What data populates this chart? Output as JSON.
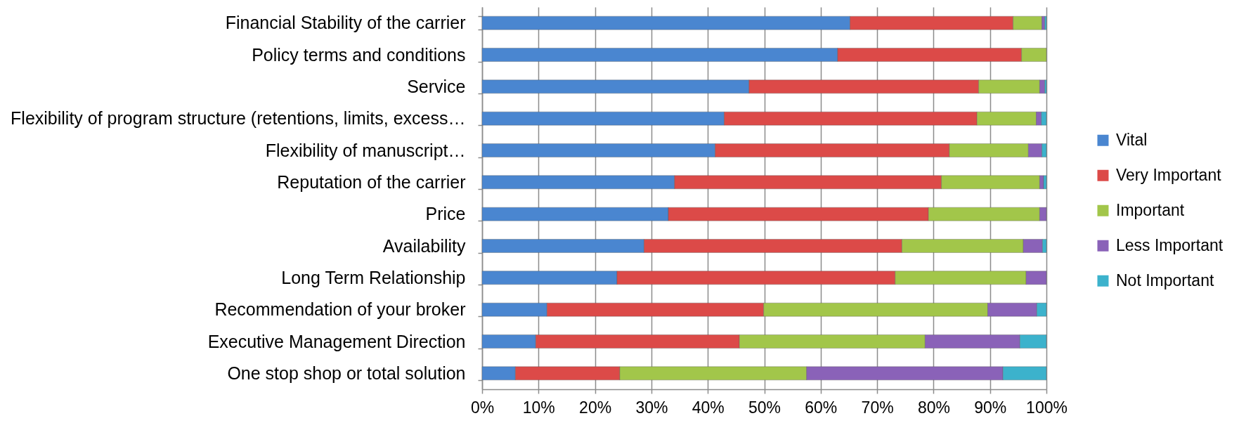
{
  "chart_data": {
    "type": "bar",
    "orientation": "horizontal",
    "stacked": true,
    "categories": [
      "Financial Stability of the carrier",
      "Policy terms and conditions",
      "Service",
      "Flexibility of program structure (retentions, limits, excess…",
      "Flexibility of manuscript…",
      "Reputation of the carrier",
      "Price",
      "Availability",
      "Long Term Relationship",
      "Recommendation of your broker",
      "Executive Management Direction",
      "One stop shop or total solution"
    ],
    "series": [
      {
        "name": "Vital",
        "color": "#4a86d0",
        "values": [
          65.2,
          63.0,
          47.3,
          42.9,
          41.3,
          34.1,
          33.0,
          28.7,
          23.9,
          11.5,
          9.5,
          5.9
        ]
      },
      {
        "name": "Very Important",
        "color": "#dc4a48",
        "values": [
          28.9,
          32.6,
          40.7,
          44.8,
          41.5,
          47.3,
          46.1,
          45.7,
          49.3,
          38.4,
          36.1,
          18.5
        ]
      },
      {
        "name": "Important",
        "color": "#a2c64a",
        "values": [
          5.1,
          4.4,
          10.8,
          10.5,
          14.0,
          17.4,
          19.7,
          21.5,
          23.2,
          39.7,
          32.9,
          33.1
        ]
      },
      {
        "name": "Less Important",
        "color": "#8a62b8",
        "values": [
          0.5,
          null,
          0.9,
          0.9,
          2.4,
          0.7,
          1.2,
          3.4,
          3.6,
          8.7,
          16.8,
          34.8
        ]
      },
      {
        "name": "Not Important",
        "color": "#3cb2cc",
        "values": [
          0.3,
          null,
          0.3,
          0.9,
          0.8,
          0.5,
          null,
          0.7,
          null,
          1.7,
          4.7,
          7.7
        ]
      }
    ],
    "xlim": [
      0,
      100
    ],
    "xticks": [
      {
        "value": 0,
        "label": "0%"
      },
      {
        "value": 10,
        "label": "10%"
      },
      {
        "value": 20,
        "label": "20%"
      },
      {
        "value": 30,
        "label": "30%"
      },
      {
        "value": 40,
        "label": "40%"
      },
      {
        "value": 50,
        "label": "50%"
      },
      {
        "value": 60,
        "label": "60%"
      },
      {
        "value": 70,
        "label": "70%"
      },
      {
        "value": 80,
        "label": "80%"
      },
      {
        "value": 90,
        "label": "90%"
      },
      {
        "value": 100,
        "label": "100%"
      }
    ],
    "grid": "x",
    "legend": "right"
  }
}
